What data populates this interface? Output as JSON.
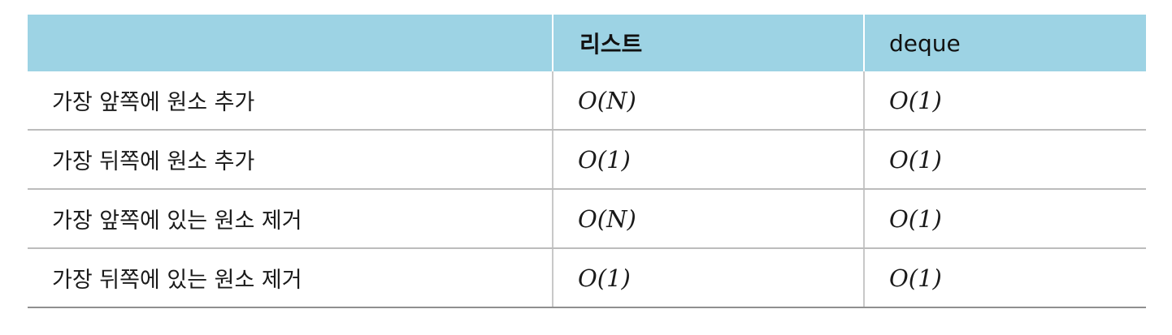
{
  "table": {
    "headers": [
      "",
      "리스트",
      "deque"
    ],
    "rows": [
      {
        "operation": "가장 앞쪽에 원소 추가",
        "list": "O(N)",
        "deque": "O(1)"
      },
      {
        "operation": "가장 뒤쪽에 원소 추가",
        "list": "O(1)",
        "deque": "O(1)"
      },
      {
        "operation": "가장 앞쪽에 있는 원소 제거",
        "list": "O(N)",
        "deque": "O(1)"
      },
      {
        "operation": "가장 뒤쪽에 있는 원소 제거",
        "list": "O(1)",
        "deque": "O(1)"
      }
    ]
  },
  "colors": {
    "header_bg": "#9dd3e4",
    "row_border": "#bcbcbc",
    "text": "#1a1a1a"
  }
}
